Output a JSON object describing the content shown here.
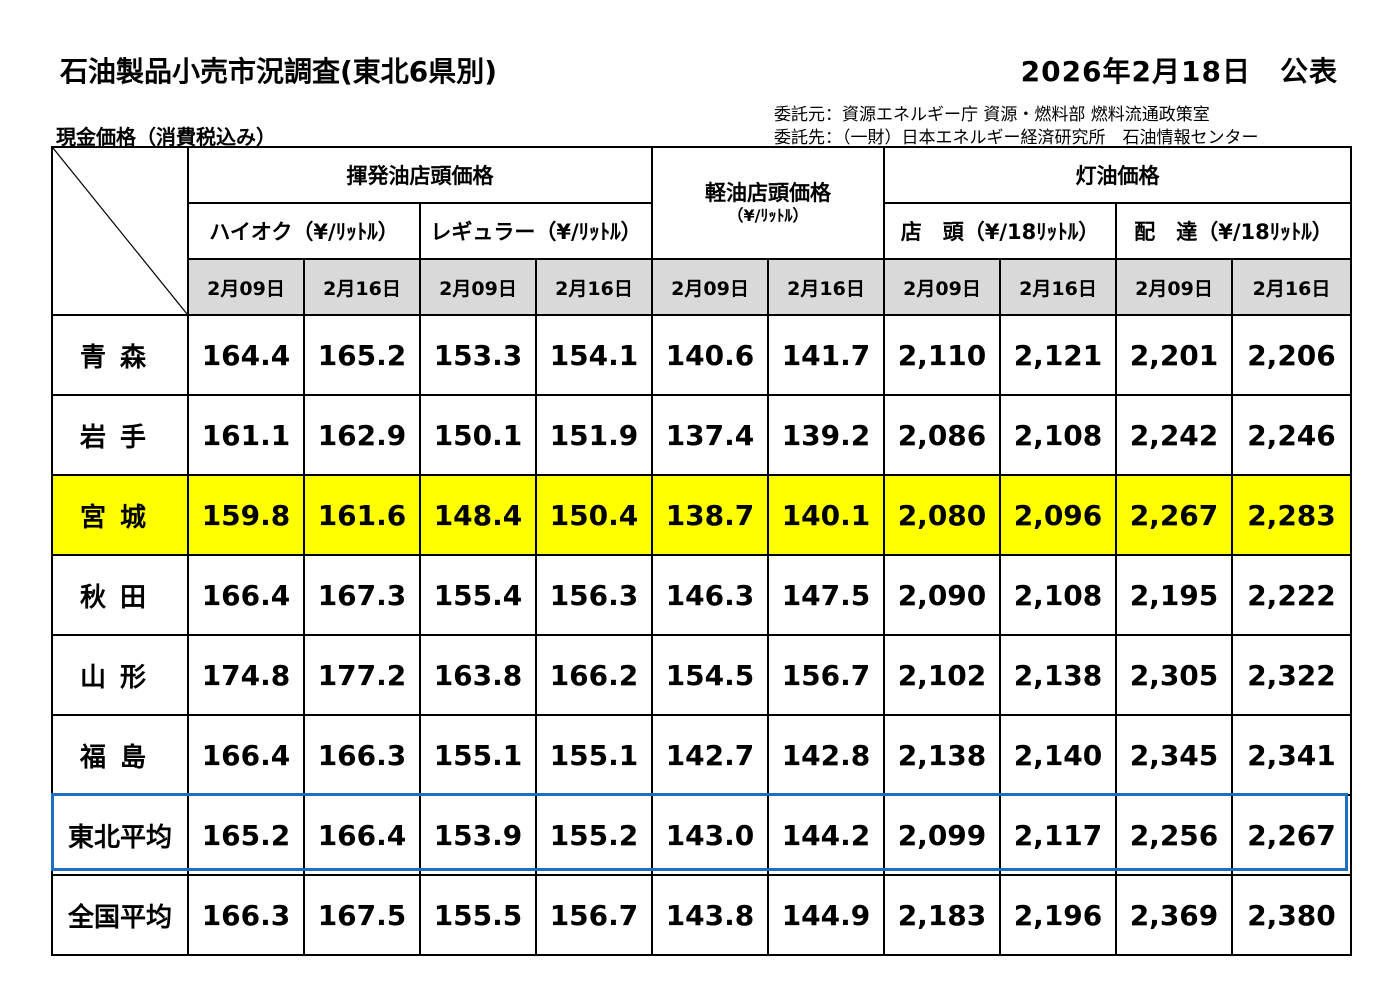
{
  "header": {
    "title": "石油製品小売市況調査(東北6県別)",
    "pub_date": "2026年2月18日　公表",
    "commissioner": "委託元：資源エネルギー庁 資源・燃料部 燃料流通政策室",
    "contractor": "委託先：（一財）日本エネルギー経済研究所　石油情報センター",
    "subtitle": "現金価格（消費税込み）"
  },
  "table": {
    "groups": {
      "gasoline": "揮発油店頭価格",
      "diesel": "軽油店頭価格",
      "diesel_unit": "（¥/ﾘｯﾄﾙ）",
      "kerosene": "灯油価格"
    },
    "subgroups": {
      "high_octane": "ハイオク（¥/ﾘｯﾄﾙ）",
      "regular": "レギュラー（¥/ﾘｯﾄﾙ）",
      "kerosene_store": "店　頭（¥/18ﾘｯﾄﾙ）",
      "kerosene_delivery": "配　達（¥/18ﾘｯﾄﾙ）"
    },
    "dates": [
      "2月09日",
      "2月16日",
      "2月09日",
      "2月16日",
      "2月09日",
      "2月16日",
      "2月09日",
      "2月16日",
      "2月09日",
      "2月16日"
    ],
    "rows": [
      {
        "name": "青森",
        "values": [
          "164.4",
          "165.2",
          "153.3",
          "154.1",
          "140.6",
          "141.7",
          "2,110",
          "2,121",
          "2,201",
          "2,206"
        ]
      },
      {
        "name": "岩手",
        "values": [
          "161.1",
          "162.9",
          "150.1",
          "151.9",
          "137.4",
          "139.2",
          "2,086",
          "2,108",
          "2,242",
          "2,246"
        ]
      },
      {
        "name": "宮城",
        "values": [
          "159.8",
          "161.6",
          "148.4",
          "150.4",
          "138.7",
          "140.1",
          "2,080",
          "2,096",
          "2,267",
          "2,283"
        ]
      },
      {
        "name": "秋田",
        "values": [
          "166.4",
          "167.3",
          "155.4",
          "156.3",
          "146.3",
          "147.5",
          "2,090",
          "2,108",
          "2,195",
          "2,222"
        ]
      },
      {
        "name": "山形",
        "values": [
          "174.8",
          "177.2",
          "163.8",
          "166.2",
          "154.5",
          "156.7",
          "2,102",
          "2,138",
          "2,305",
          "2,322"
        ]
      },
      {
        "name": "福島",
        "values": [
          "166.4",
          "166.3",
          "155.1",
          "155.1",
          "142.7",
          "142.8",
          "2,138",
          "2,140",
          "2,345",
          "2,341"
        ]
      },
      {
        "name": "東北平均",
        "values": [
          "165.2",
          "166.4",
          "153.9",
          "155.2",
          "143.0",
          "144.2",
          "2,099",
          "2,117",
          "2,256",
          "2,267"
        ]
      },
      {
        "name": "全国平均",
        "values": [
          "166.3",
          "167.5",
          "155.5",
          "156.7",
          "143.8",
          "144.9",
          "2,183",
          "2,196",
          "2,369",
          "2,380"
        ]
      }
    ],
    "highlight_color": "#ffff00",
    "average_box_color": "#1f6fc0"
  }
}
